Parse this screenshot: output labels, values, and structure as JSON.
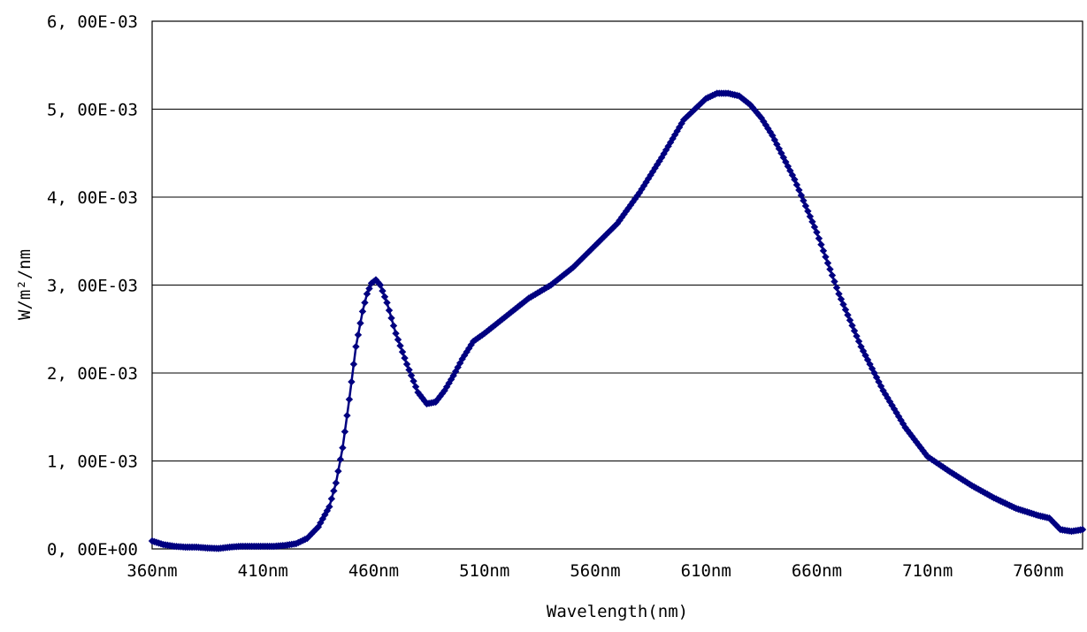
{
  "chart_data": {
    "type": "line",
    "title": "",
    "xlabel": "Wavelength(nm)",
    "ylabel": "W/m²/nm",
    "xlim": [
      360,
      780
    ],
    "ylim": [
      0,
      0.006
    ],
    "grid": "horizontal",
    "x_ticks": [
      360,
      410,
      460,
      510,
      560,
      610,
      660,
      710,
      760
    ],
    "x_tick_labels": [
      "360nm",
      "410nm",
      "460nm",
      "510nm",
      "560nm",
      "610nm",
      "660nm",
      "710nm",
      "760nm"
    ],
    "y_ticks": [
      0,
      0.001,
      0.002,
      0.003,
      0.004,
      0.005,
      0.006
    ],
    "y_tick_labels": [
      "0, 00E+00",
      "1, 00E-03",
      "2, 00E-03",
      "3, 00E-03",
      "4, 00E-03",
      "5, 00E-03",
      "6, 00E-03"
    ],
    "series_color": "#000080",
    "marker": "diamond",
    "series": [
      {
        "x": [
          360,
          365,
          370,
          375,
          380,
          385,
          390,
          395,
          400,
          405,
          410,
          415,
          420,
          425,
          430,
          435,
          440,
          443,
          446,
          449,
          452,
          455,
          457,
          459,
          461,
          463,
          466,
          470,
          475,
          480,
          484,
          488,
          492,
          496,
          500,
          505,
          510,
          515,
          520,
          530,
          540,
          550,
          560,
          570,
          580,
          590,
          600,
          610,
          615,
          620,
          625,
          630,
          635,
          640,
          645,
          650,
          655,
          660,
          670,
          680,
          690,
          700,
          710,
          720,
          730,
          740,
          750,
          760,
          765,
          770,
          775,
          780
        ],
        "y": [
          9e-05,
          5e-05,
          3e-05,
          2e-05,
          2e-05,
          1e-05,
          5e-06,
          2e-05,
          3e-05,
          3e-05,
          3e-05,
          3e-05,
          4e-05,
          6e-05,
          0.00012,
          0.00025,
          0.00048,
          0.00075,
          0.00115,
          0.0017,
          0.0023,
          0.0027,
          0.0029,
          0.00302,
          0.00306,
          0.003,
          0.0028,
          0.00245,
          0.0021,
          0.00178,
          0.00165,
          0.00167,
          0.0018,
          0.00197,
          0.00216,
          0.00236,
          0.00245,
          0.00255,
          0.00265,
          0.00285,
          0.003,
          0.0032,
          0.00345,
          0.0037,
          0.00405,
          0.00445,
          0.00488,
          0.00512,
          0.00518,
          0.00518,
          0.00515,
          0.00505,
          0.0049,
          0.0047,
          0.00445,
          0.0042,
          0.0039,
          0.0036,
          0.0029,
          0.0023,
          0.0018,
          0.00138,
          0.00105,
          0.00088,
          0.00072,
          0.00058,
          0.00046,
          0.00038,
          0.00035,
          0.00022,
          0.0002,
          0.00022
        ]
      }
    ]
  }
}
